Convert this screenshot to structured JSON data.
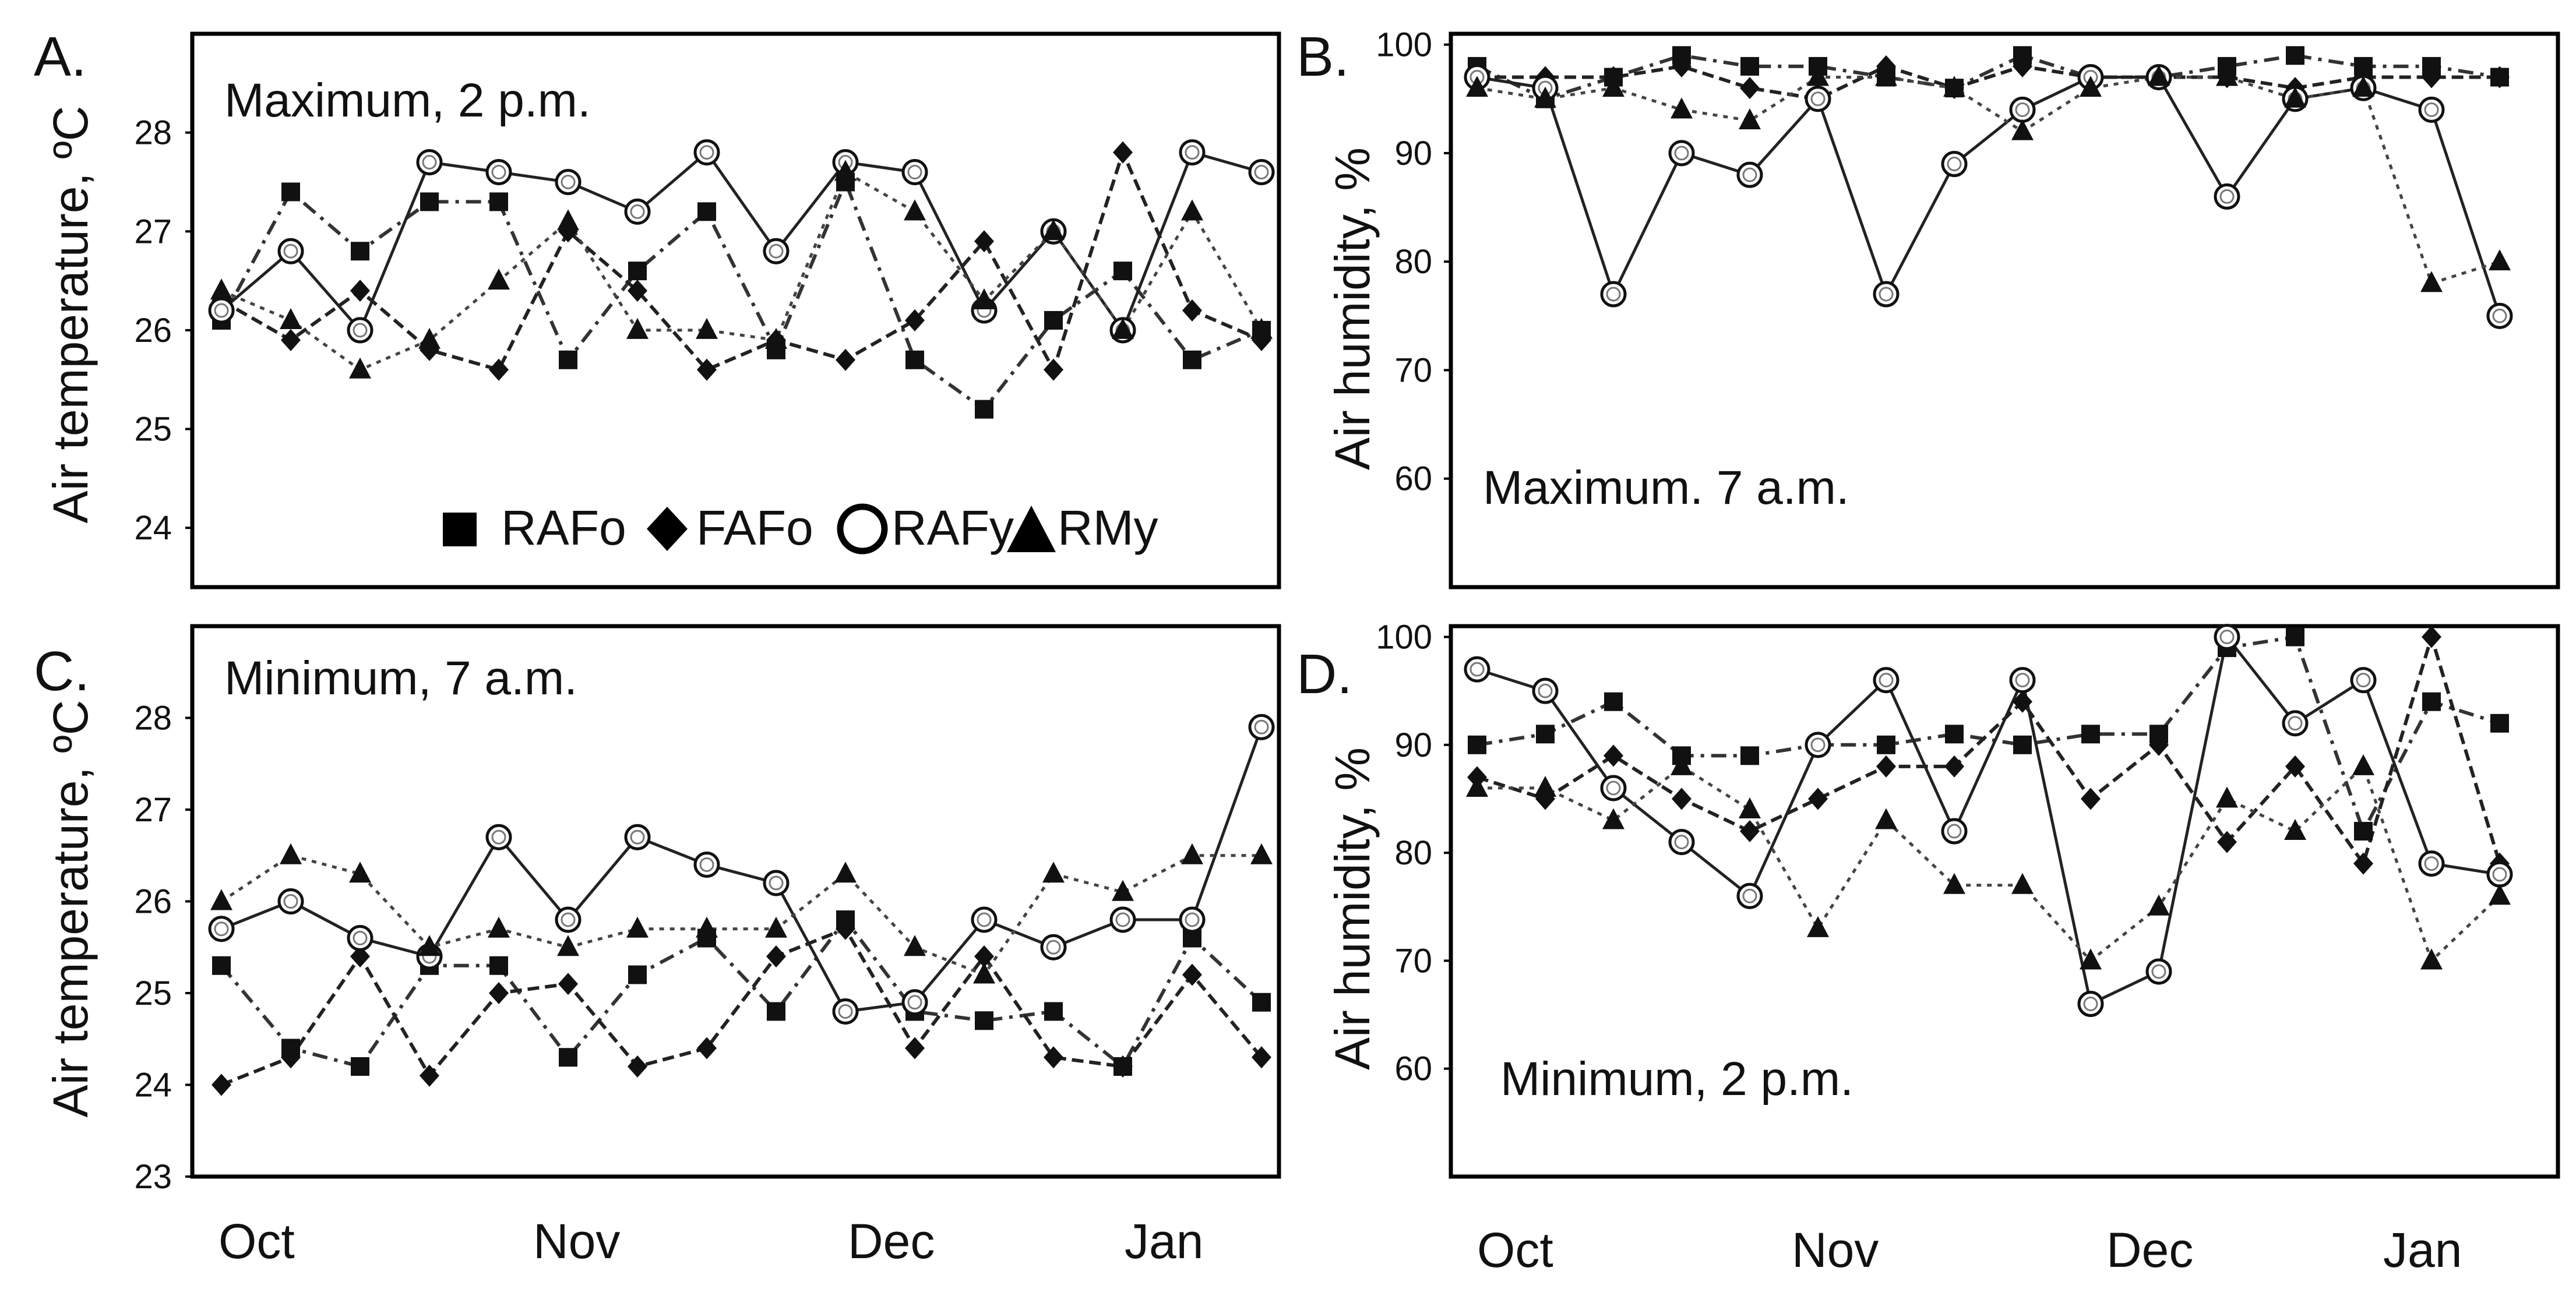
{
  "figure": {
    "months": [
      "Oct",
      "Nov",
      "Dec",
      "Jan"
    ],
    "legend": [
      {
        "marker": "square",
        "label": "RAFo",
        "line": "dash-dot"
      },
      {
        "marker": "diamond",
        "label": "FAFo",
        "line": "dashed"
      },
      {
        "marker": "circle",
        "label": "RAFy",
        "line": "solid"
      },
      {
        "marker": "triangle",
        "label": "RMy",
        "line": "dotted"
      }
    ]
  },
  "chart_data": [
    {
      "letter": "A.",
      "title": "Maximum, 2 p.m.",
      "type": "line",
      "ylabel": "Air temperature, ºC",
      "unit": "ºC",
      "ylim": [
        23.4,
        29.0
      ],
      "yticks": [
        24,
        25,
        26,
        27,
        28
      ],
      "legend_shown": true,
      "x": [
        0,
        1,
        2,
        3,
        4,
        5,
        6,
        7,
        8,
        9,
        10,
        11,
        12,
        13,
        14,
        15
      ],
      "series": [
        {
          "name": "RAFo",
          "values": [
            26.1,
            27.4,
            26.8,
            27.3,
            27.3,
            25.7,
            26.6,
            27.2,
            25.8,
            27.5,
            25.7,
            25.2,
            26.1,
            26.6,
            25.7,
            26.0
          ]
        },
        {
          "name": "FAFo",
          "values": [
            26.3,
            25.9,
            26.4,
            25.8,
            25.6,
            27.0,
            26.4,
            25.6,
            25.9,
            25.7,
            26.1,
            26.9,
            25.6,
            27.8,
            26.2,
            25.9
          ]
        },
        {
          "name": "RAFy",
          "values": [
            26.2,
            26.8,
            26.0,
            27.7,
            27.6,
            27.5,
            27.2,
            27.8,
            26.8,
            27.7,
            27.6,
            26.2,
            27.0,
            26.0,
            27.8,
            27.6
          ]
        },
        {
          "name": "RMy",
          "values": [
            26.4,
            26.1,
            25.6,
            25.9,
            26.5,
            27.1,
            26.0,
            26.0,
            25.9,
            27.6,
            27.2,
            26.3,
            27.0,
            26.0,
            27.2,
            26.0
          ]
        }
      ]
    },
    {
      "letter": "B.",
      "title": "Maximum. 7 a.m.",
      "type": "line",
      "ylabel": "Air humidity, %",
      "unit": "%",
      "ylim": [
        50,
        101
      ],
      "yticks": [
        60,
        70,
        80,
        90,
        100
      ],
      "legend_shown": false,
      "x": [
        0,
        1,
        2,
        3,
        4,
        5,
        6,
        7,
        8,
        9,
        10,
        11,
        12,
        13,
        14,
        15
      ],
      "series": [
        {
          "name": "RAFo",
          "values": [
            98,
            95,
            97,
            99,
            98,
            98,
            97,
            96,
            99,
            97,
            97,
            98,
            99,
            98,
            98,
            97
          ]
        },
        {
          "name": "FAFo",
          "values": [
            97,
            97,
            97,
            98,
            96,
            95,
            98,
            96,
            98,
            97,
            97,
            97,
            96,
            97,
            97,
            97
          ]
        },
        {
          "name": "RAFy",
          "values": [
            97,
            96,
            77,
            90,
            88,
            95,
            77,
            89,
            94,
            97,
            97,
            86,
            95,
            96,
            94,
            75
          ]
        },
        {
          "name": "RMy",
          "values": [
            96,
            95,
            96,
            94,
            93,
            97,
            97,
            96,
            92,
            96,
            97,
            97,
            95,
            96,
            78,
            80
          ]
        }
      ]
    },
    {
      "letter": "C.",
      "title": "Minimum, 7 a.m.",
      "type": "line",
      "ylabel": "Air temperature, ºC",
      "unit": "ºC",
      "ylim": [
        23.0,
        29.0
      ],
      "yticks": [
        23,
        24,
        25,
        26,
        27,
        28
      ],
      "legend_shown": false,
      "x": [
        0,
        1,
        2,
        3,
        4,
        5,
        6,
        7,
        8,
        9,
        10,
        11,
        12,
        13,
        14,
        15
      ],
      "series": [
        {
          "name": "RAFo",
          "values": [
            25.3,
            24.4,
            24.2,
            25.3,
            25.3,
            24.3,
            25.2,
            25.6,
            24.8,
            25.8,
            24.8,
            24.7,
            24.8,
            24.2,
            25.6,
            24.9
          ]
        },
        {
          "name": "FAFo",
          "values": [
            24.0,
            24.3,
            25.4,
            24.1,
            25.0,
            25.1,
            24.2,
            24.4,
            25.4,
            25.7,
            24.4,
            25.4,
            24.3,
            24.2,
            25.2,
            24.3
          ]
        },
        {
          "name": "RAFy",
          "values": [
            25.7,
            26.0,
            25.6,
            25.4,
            26.7,
            25.8,
            26.7,
            26.4,
            26.2,
            24.8,
            24.9,
            25.8,
            25.5,
            25.8,
            25.8,
            27.9
          ]
        },
        {
          "name": "RMy",
          "values": [
            26.0,
            26.5,
            26.3,
            25.5,
            25.7,
            25.5,
            25.7,
            25.7,
            25.7,
            26.3,
            25.5,
            25.2,
            26.3,
            26.1,
            26.5,
            26.5
          ]
        }
      ]
    },
    {
      "letter": "D.",
      "title": "Minimum, 2 p.m.",
      "type": "line",
      "ylabel": "Air humidity, %",
      "unit": "%",
      "ylim": [
        50,
        101
      ],
      "yticks": [
        60,
        70,
        80,
        90,
        100
      ],
      "legend_shown": false,
      "x": [
        0,
        1,
        2,
        3,
        4,
        5,
        6,
        7,
        8,
        9,
        10,
        11,
        12,
        13,
        14,
        15
      ],
      "series": [
        {
          "name": "RAFo",
          "values": [
            90,
            91,
            94,
            89,
            89,
            90,
            90,
            91,
            90,
            91,
            91,
            99,
            100,
            82,
            94,
            92
          ]
        },
        {
          "name": "FAFo",
          "values": [
            87,
            85,
            89,
            85,
            82,
            85,
            88,
            88,
            94,
            85,
            90,
            81,
            88,
            79,
            100,
            79
          ]
        },
        {
          "name": "RAFy",
          "values": [
            97,
            95,
            86,
            81,
            76,
            90,
            96,
            82,
            96,
            66,
            69,
            100,
            92,
            96,
            79,
            78
          ]
        },
        {
          "name": "RMy",
          "values": [
            86,
            86,
            83,
            88,
            84,
            73,
            83,
            77,
            77,
            70,
            75,
            85,
            82,
            88,
            70,
            76
          ]
        }
      ]
    }
  ]
}
